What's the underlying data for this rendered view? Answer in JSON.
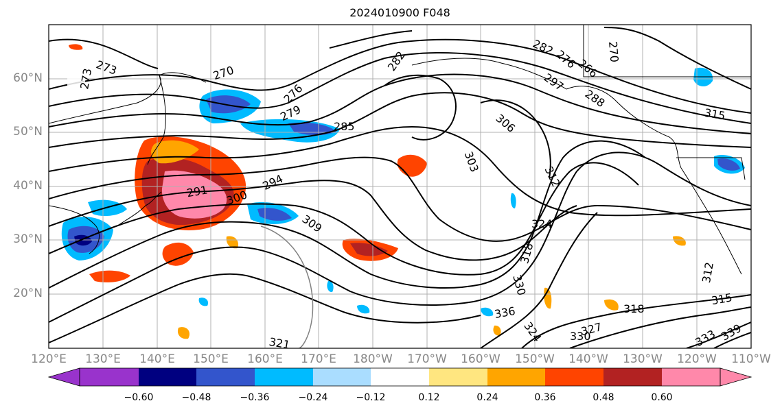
{
  "title": "2024010900 F048",
  "lat_labels": [
    "60°N",
    "50°N",
    "40°N",
    "30°N",
    "20°N"
  ],
  "lon_labels": [
    "120°E",
    "130°E",
    "140°E",
    "150°E",
    "160°E",
    "170°E",
    "180°W",
    "170°W",
    "160°W",
    "150°W",
    "140°W",
    "130°W",
    "120°W",
    "110°W"
  ],
  "contour_labels": [
    "273",
    "273",
    "270",
    "276",
    "279",
    "282",
    "282",
    "276",
    "266",
    "270",
    "285",
    "288",
    "291",
    "294",
    "297",
    "300",
    "303",
    "306",
    "309",
    "312",
    "315",
    "318",
    "318",
    "321",
    "324",
    "324",
    "327",
    "330",
    "330",
    "333",
    "336",
    "339",
    "312",
    "315"
  ],
  "colorbar": {
    "colors": [
      "#9933cc",
      "#000080",
      "#3355cc",
      "#00bbff",
      "#aaddff",
      "#ffffff",
      "#ffe680",
      "#ffa500",
      "#ff4400",
      "#b22222",
      "#ff88aa"
    ],
    "ticks": [
      "−0.60",
      "−0.48",
      "−0.36",
      "−0.24",
      "−0.12",
      "0.12",
      "0.24",
      "0.36",
      "0.48",
      "0.60"
    ]
  }
}
